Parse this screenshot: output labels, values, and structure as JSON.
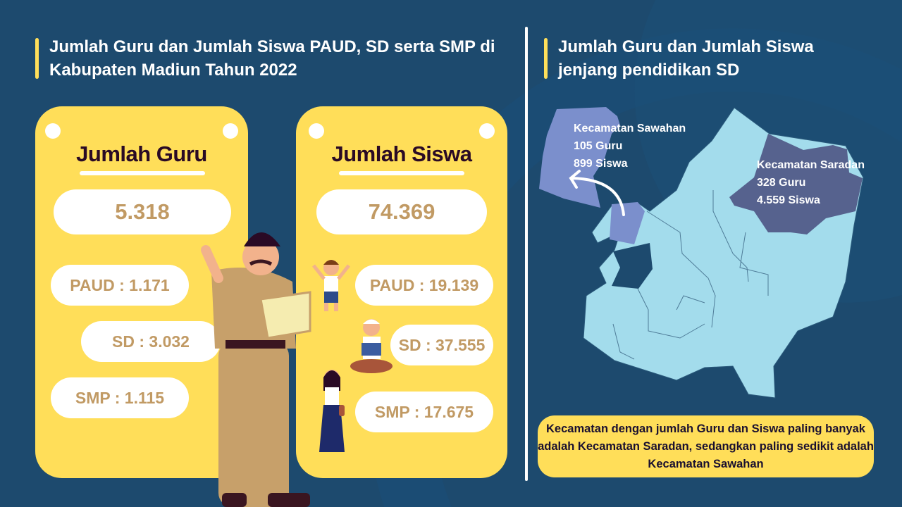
{
  "left_title": "Jumlah Guru dan Jumlah Siswa PAUD, SD serta SMP di Kabupaten Madiun Tahun 2022",
  "right_title": "Jumlah Guru dan Jumlah Siswa jenjang pendidikan SD",
  "guru": {
    "heading": "Jumlah Guru",
    "total": "5.318",
    "paud": "PAUD : 1.171",
    "sd": "SD : 3.032",
    "smp": "SMP : 1.115"
  },
  "siswa": {
    "heading": "Jumlah Siswa",
    "total": "74.369",
    "paud": "PAUD : 19.139",
    "sd": "SD : 37.555",
    "smp": "SMP : 17.675"
  },
  "map": {
    "sawahan": {
      "name": "Kecamatan Sawahan",
      "guru": "105 Guru",
      "siswa": "899 Siswa",
      "color": "#7b8fcc"
    },
    "saradan": {
      "name": "Kecamatan Saradan",
      "guru": "328 Guru",
      "siswa": "4.559 Siswa",
      "color": "#56628e"
    },
    "region_color": "#a3dcec"
  },
  "note": "Kecamatan dengan jumlah Guru dan Siswa paling banyak adalah Kecamatan Saradan, sedangkan paling sedikit adalah Kecamatan Sawahan",
  "colors": {
    "background": "#1d4a6e",
    "card": "#ffde59",
    "value_text": "#c19a64"
  }
}
